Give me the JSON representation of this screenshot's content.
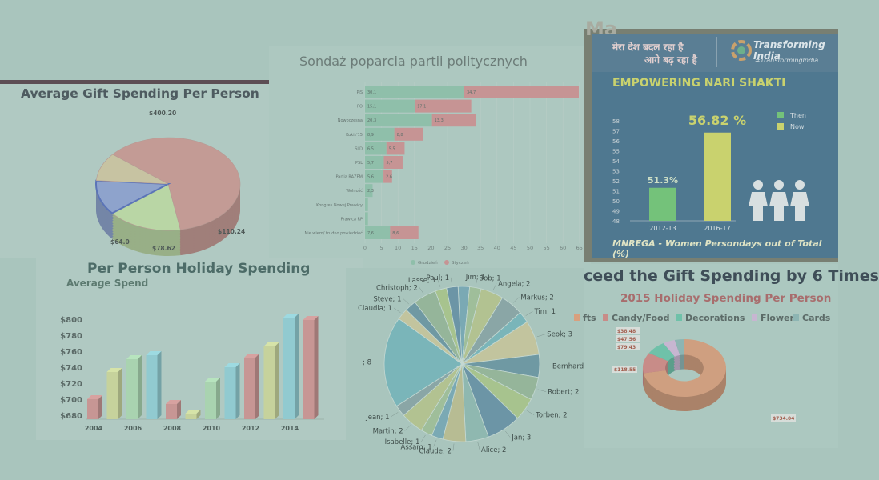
{
  "colors": {
    "background": "#a9c5bd",
    "poster_blue": "#4f7890",
    "poster_yellow": "#c9d26e",
    "poster_green": "#74c27a"
  },
  "gift": {
    "title": "Average Gift Spending Per Person",
    "chart_data": {
      "type": "pie",
      "title": "Average Gift Spending Per Person",
      "slices": [
        {
          "label": "$400.20",
          "value": 400.2,
          "color": "#c39b95"
        },
        {
          "label": "$110.24",
          "value": 110.24,
          "color": "#b9d6a5"
        },
        {
          "label": "$78.62",
          "value": 78.62,
          "color": "#8ea3cc"
        },
        {
          "label": "$64.0",
          "value": 64.0,
          "color": "#c7c3a2"
        }
      ]
    }
  },
  "poll": {
    "title": "Sondaż poparcia partii politycznych",
    "chart_data": {
      "type": "bar",
      "orientation": "horizontal",
      "title": "Sondaż poparcia partii politycznych",
      "categories": [
        "PiS",
        "PO",
        "Nowoczesna",
        "Kukiz'15",
        "SLD",
        "PSL",
        "Partia RAZEM",
        "Wolność",
        "Kongres Nowej Prawicy",
        "Prawica RP",
        "Nie wiem/ trudno powiedzieć"
      ],
      "series": [
        {
          "name": "Grudzień",
          "color": "#8fbfaa",
          "values": [
            30.1,
            15.1,
            20.3,
            8.9,
            6.5,
            5.7,
            5.6,
            2.3,
            0.9,
            0.9,
            7.6
          ],
          "labels": [
            "30,1",
            "15,1",
            "20,3",
            "8,9",
            "6,5",
            "5,7",
            "5,6",
            "2,3",
            "",
            "",
            "7,6"
          ]
        },
        {
          "name": "Styczeń",
          "color": "#c69494",
          "values": [
            34.7,
            17.1,
            13.3,
            8.8,
            5.5,
            5.7,
            2.6,
            0,
            0,
            0,
            8.6
          ],
          "labels": [
            "34,7",
            "17,1",
            "13,3",
            "8,8",
            "5,5",
            "5,7",
            "2,6",
            "",
            "",
            "",
            "8,6"
          ]
        }
      ],
      "xticks": [
        "0",
        "5",
        "10",
        "15",
        "20",
        "25",
        "30",
        "35",
        "40",
        "45",
        "50",
        "55",
        "60",
        "65"
      ],
      "xlim": [
        0,
        65
      ]
    }
  },
  "poster": {
    "hindi_line1": "मेरा देश बदल रहा है",
    "hindi_line2": "आगे बढ़ रहा है",
    "brand": "Transforming India",
    "hashtag": "#TransformingIndia",
    "heading": "EMPOWERING NARI SHAKTI",
    "top_fragment": "Ma",
    "footer": "MNREGA - Women Persondays out of Total (%)",
    "chart_data": {
      "type": "bar",
      "categories": [
        "2012-13",
        "2016-17"
      ],
      "values": [
        51.3,
        56.82
      ],
      "value_labels": [
        "51.3%",
        "56.82 %"
      ],
      "legend": [
        "Then",
        "Now"
      ],
      "ylim": [
        48,
        58
      ],
      "yticks": [
        "58",
        "57",
        "56",
        "55",
        "54",
        "53",
        "52",
        "51",
        "50",
        "49",
        "48"
      ]
    }
  },
  "holiday": {
    "title": "Per Person Holiday Spending",
    "subtitle": "Average Spend",
    "chart_data": {
      "type": "bar",
      "title": "Per Person Holiday Spending",
      "ylabel": "Average Spend",
      "ylim": [
        675,
        805
      ],
      "yticks": [
        "$800",
        "$780",
        "$760",
        "$740",
        "$720",
        "$700",
        "$680"
      ],
      "xticks": [
        "2004",
        "2006",
        "2008",
        "2010",
        "2012",
        "2014"
      ],
      "bars": [
        {
          "value": 700,
          "color": "#c79694"
        },
        {
          "value": 734,
          "color": "#c6d29c"
        },
        {
          "value": 750,
          "color": "#a9d3b0"
        },
        {
          "value": 755,
          "color": "#91cad0"
        },
        {
          "value": 694,
          "color": "#c79694"
        },
        {
          "value": 682,
          "color": "#c6d29c"
        },
        {
          "value": 722,
          "color": "#a9d3b0"
        },
        {
          "value": 740,
          "color": "#91cad0"
        },
        {
          "value": 752,
          "color": "#c79694"
        },
        {
          "value": 766,
          "color": "#c6d29c"
        },
        {
          "value": 802,
          "color": "#91cad0"
        },
        {
          "value": 799,
          "color": "#c79694"
        }
      ]
    }
  },
  "names_pie": {
    "chart_data": {
      "type": "pie",
      "slices": [
        {
          "label": "Jim; 1",
          "value": 1
        },
        {
          "label": "Bob; 1",
          "value": 1
        },
        {
          "label": "Angela; 2",
          "value": 2
        },
        {
          "label": "Markus; 2",
          "value": 2
        },
        {
          "label": "Tim; 1",
          "value": 1
        },
        {
          "label": "Seok; 3",
          "value": 3
        },
        {
          "label": "Bernhard; 2",
          "value": 2
        },
        {
          "label": "Robert; 2",
          "value": 2
        },
        {
          "label": "Torben; 2",
          "value": 2
        },
        {
          "label": "Jan; 3",
          "value": 3
        },
        {
          "label": "Alice; 2",
          "value": 2
        },
        {
          "label": "Claude; 2",
          "value": 2
        },
        {
          "label": "Assam; 1",
          "value": 1
        },
        {
          "label": "Isabelle; 1",
          "value": 1
        },
        {
          "label": "Martin; 2",
          "value": 2
        },
        {
          "label": "Jean; 1",
          "value": 1
        },
        {
          "label": "; 8",
          "value": 8
        },
        {
          "label": "Claudia; 1",
          "value": 1
        },
        {
          "label": "Steve; 1",
          "value": 1
        },
        {
          "label": "Christoph; 2",
          "value": 2
        },
        {
          "label": "Lasse; 1",
          "value": 1
        },
        {
          "label": "Paul; 1",
          "value": 1
        }
      ]
    }
  },
  "spend2015": {
    "banner": "ceed the Gift Spending by 6 Times",
    "title": "2015 Holiday Spending Per Person",
    "legend": [
      {
        "label": "fts",
        "color": "#d8a07e"
      },
      {
        "label": "Candy/Food",
        "color": "#c88c88"
      },
      {
        "label": "Decorations",
        "color": "#6fc1a9"
      },
      {
        "label": "Flowers",
        "color": "#c7b6d1"
      },
      {
        "label": "Cards",
        "color": "#8db5b3"
      }
    ],
    "chart_data": {
      "type": "pie",
      "title": "2015 Holiday Spending Per Person",
      "slices": [
        {
          "label": "$734.04",
          "value": 734.04,
          "color": "#cf9f80"
        },
        {
          "label": "$118.55",
          "value": 118.55,
          "color": "#c88c88"
        },
        {
          "label": "$79.43",
          "value": 79.43,
          "color": "#6fc1a9"
        },
        {
          "label": "$47.56",
          "value": 47.56,
          "color": "#c7b6d1"
        },
        {
          "label": "$38.48",
          "value": 38.48,
          "color": "#8db5b3"
        }
      ]
    }
  }
}
